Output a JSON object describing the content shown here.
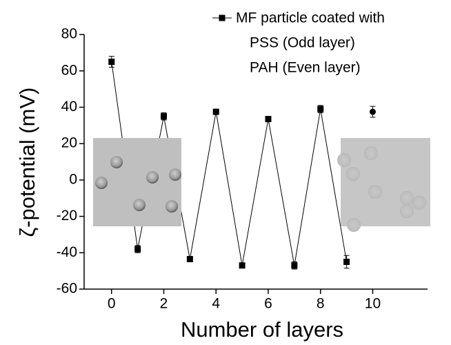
{
  "chart_data": {
    "type": "line",
    "xlabel": "Number of layers",
    "ylabel": "ζ-potential (mV)",
    "xlim": [
      -1.05,
      12.1
    ],
    "xticks": [
      0,
      2,
      4,
      6,
      8,
      10
    ],
    "ylim": [
      -60,
      80
    ],
    "yticks": [
      -60,
      -40,
      -20,
      0,
      20,
      40,
      60,
      80
    ],
    "series": [
      {
        "name": "MF particle coated with",
        "color": "#000000",
        "x": [
          0,
          1,
          2,
          3,
          4,
          5,
          6,
          7,
          8,
          9
        ],
        "values": [
          65,
          -38,
          35,
          -43.5,
          37.5,
          -47,
          33.5,
          -47,
          39,
          -45
        ],
        "errors": [
          3,
          2,
          2,
          1,
          1,
          1,
          1,
          2,
          2,
          3.5
        ]
      },
      {
        "color": "#000000",
        "marker": "circle",
        "line": false,
        "x": [
          10
        ],
        "values": [
          37.5
        ],
        "errors": [
          3
        ]
      }
    ],
    "legend_notes": [
      "PSS (Odd layer)",
      "PAH (Even layer)"
    ]
  }
}
